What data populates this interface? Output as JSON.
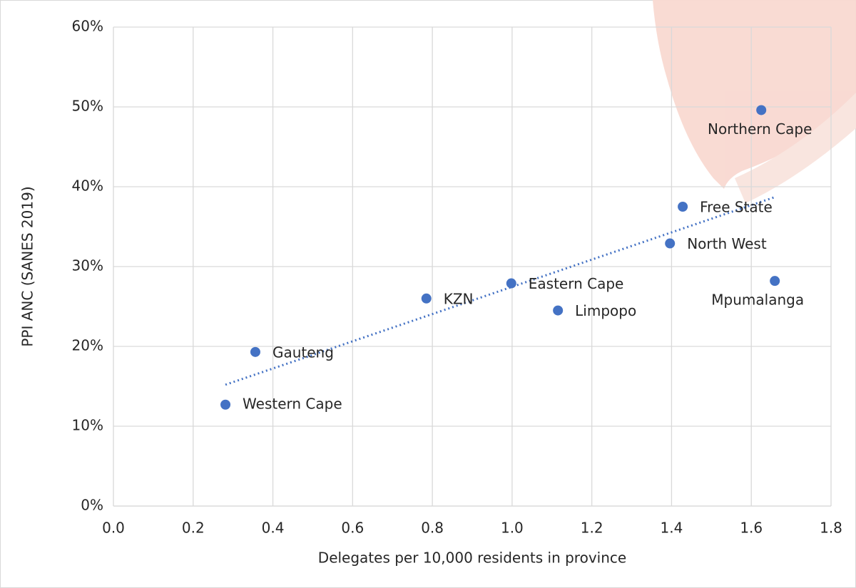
{
  "chart_data": {
    "type": "scatter",
    "x_label": "Delegates per 10,000 residents in province",
    "y_label": "PPI ANC (SANES 2019)",
    "series": [
      {
        "color": "#4472c4",
        "labels": [
          "Western Cape",
          "Gauteng",
          "KZN",
          "Eastern Cape",
          "Limpopo",
          "North West",
          "Free State",
          "Northern Cape",
          "Mpumalanga"
        ],
        "x": [
          0.281,
          0.356,
          0.785,
          0.998,
          1.115,
          1.396,
          1.428,
          1.625,
          1.659
        ],
        "values": [
          12.7,
          19.3,
          26.0,
          27.9,
          24.5,
          32.9,
          37.5,
          49.6,
          28.2
        ]
      }
    ],
    "trendline": {
      "color": "#4472c4",
      "x": [
        0.281,
        1.659
      ],
      "values": [
        15.2,
        38.7
      ]
    },
    "xlim": [
      0,
      1.8
    ],
    "xticks": [
      {
        "value": 0,
        "label": "0.0"
      },
      0.2,
      0.4,
      0.6,
      0.8,
      {
        "value": 1,
        "label": "1.0"
      },
      1.2,
      1.4,
      1.6,
      1.8
    ],
    "ylim": [
      0,
      60
    ],
    "yticks": [
      {
        "value": 0,
        "label": "0%"
      },
      {
        "value": 10,
        "label": "10%"
      },
      {
        "value": 20,
        "label": "20%"
      },
      {
        "value": 30,
        "label": "30%"
      },
      {
        "value": 40,
        "label": "40%"
      },
      {
        "value": 50,
        "label": "50%"
      },
      {
        "value": 60,
        "label": "60%"
      }
    ],
    "grid": true
  }
}
